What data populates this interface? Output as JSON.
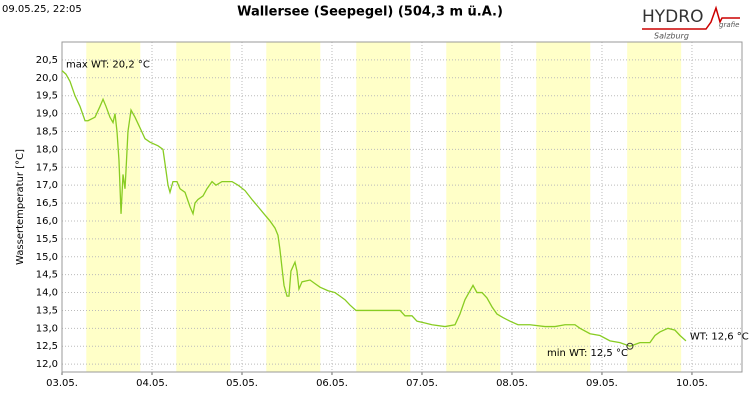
{
  "timestamp": "09.05.25, 22:05",
  "logo": {
    "name": "HYDRO",
    "suffix": "grafie",
    "region": "Salzburg"
  },
  "chart_data": {
    "type": "line",
    "title": "Wallersee (Seepegel) (504,3 m ü.A.)",
    "y_label": "Wassertemperatur [°C]",
    "xlim": [
      0,
      7.556
    ],
    "xticks": [
      {
        "value": 0,
        "label": "03.05."
      },
      {
        "value": 1,
        "label": "04.05."
      },
      {
        "value": 2,
        "label": "05.05."
      },
      {
        "value": 3,
        "label": "06.05."
      },
      {
        "value": 4,
        "label": "07.05."
      },
      {
        "value": 5,
        "label": "08.05."
      },
      {
        "value": 6,
        "label": "09.05."
      },
      {
        "value": 7,
        "label": "10.05."
      }
    ],
    "ylim": [
      11.78,
      21.0
    ],
    "yticks": [
      {
        "value": 12.0,
        "label": "12,0"
      },
      {
        "value": 12.5,
        "label": "12,5"
      },
      {
        "value": 13.0,
        "label": "13,0"
      },
      {
        "value": 13.5,
        "label": "13,5"
      },
      {
        "value": 14.0,
        "label": "14,0"
      },
      {
        "value": 14.5,
        "label": "14,5"
      },
      {
        "value": 15.0,
        "label": "15,0"
      },
      {
        "value": 15.5,
        "label": "15,5"
      },
      {
        "value": 16.0,
        "label": "16,0"
      },
      {
        "value": 16.5,
        "label": "16,5"
      },
      {
        "value": 17.0,
        "label": "17,0"
      },
      {
        "value": 17.5,
        "label": "17,5"
      },
      {
        "value": 18.0,
        "label": "18,0"
      },
      {
        "value": 18.5,
        "label": "18,5"
      },
      {
        "value": 19.0,
        "label": "19,0"
      },
      {
        "value": 19.5,
        "label": "19,5"
      },
      {
        "value": 20.0,
        "label": "20,0"
      },
      {
        "value": 20.5,
        "label": "20,5"
      }
    ],
    "grid": true,
    "day_bands": [
      [
        0.27,
        0.87
      ],
      [
        1.27,
        1.87
      ],
      [
        2.27,
        2.87
      ],
      [
        3.27,
        3.87
      ],
      [
        4.27,
        4.87
      ],
      [
        5.27,
        5.87
      ],
      [
        6.28,
        6.88
      ]
    ],
    "band_color": "#ffffc8",
    "series": [
      {
        "name": "WT",
        "color": "#88cc22",
        "x": [
          0,
          0.044,
          0.089,
          0.144,
          0.2,
          0.256,
          0.289,
          0.367,
          0.422,
          0.456,
          0.489,
          0.533,
          0.567,
          0.589,
          0.611,
          0.633,
          0.656,
          0.678,
          0.7,
          0.711,
          0.733,
          0.767,
          0.811,
          0.867,
          0.922,
          0.978,
          1.067,
          1.122,
          1.156,
          1.178,
          1.2,
          1.233,
          1.278,
          1.311,
          1.367,
          1.422,
          1.456,
          1.478,
          1.511,
          1.567,
          1.611,
          1.667,
          1.711,
          1.778,
          1.889,
          1.956,
          2.033,
          2.111,
          2.178,
          2.244,
          2.311,
          2.367,
          2.4,
          2.422,
          2.444,
          2.467,
          2.5,
          2.522,
          2.544,
          2.589,
          2.611,
          2.633,
          2.667,
          2.756,
          2.811,
          2.867,
          2.956,
          3.033,
          3.089,
          3.144,
          3.2,
          3.267,
          3.367,
          3.589,
          3.756,
          3.811,
          3.889,
          3.944,
          4.033,
          4.111,
          4.256,
          4.367,
          4.422,
          4.478,
          4.533,
          4.567,
          4.611,
          4.667,
          4.722,
          4.778,
          4.833,
          4.9,
          4.978,
          5.067,
          5.2,
          5.367,
          5.478,
          5.589,
          5.7,
          5.756,
          5.867,
          5.978,
          6.089,
          6.2,
          6.311,
          6.422,
          6.533,
          6.589,
          6.644,
          6.733,
          6.811,
          6.867,
          6.933
        ],
        "values": [
          20.2,
          20.1,
          19.9,
          19.5,
          19.2,
          18.8,
          18.8,
          18.9,
          19.2,
          19.4,
          19.2,
          18.9,
          18.75,
          19.0,
          18.5,
          17.7,
          16.2,
          17.3,
          16.9,
          17.4,
          18.5,
          19.1,
          18.9,
          18.6,
          18.3,
          18.2,
          18.1,
          18.0,
          17.4,
          17.0,
          16.8,
          17.1,
          17.1,
          16.9,
          16.8,
          16.4,
          16.2,
          16.5,
          16.6,
          16.7,
          16.9,
          17.1,
          17.0,
          17.1,
          17.1,
          17.0,
          16.85,
          16.6,
          16.4,
          16.2,
          16.0,
          15.8,
          15.6,
          15.2,
          14.7,
          14.2,
          13.9,
          13.9,
          14.6,
          14.85,
          14.6,
          14.1,
          14.3,
          14.35,
          14.25,
          14.15,
          14.05,
          14.0,
          13.9,
          13.8,
          13.65,
          13.5,
          13.5,
          13.5,
          13.5,
          13.35,
          13.35,
          13.2,
          13.15,
          13.1,
          13.05,
          13.1,
          13.4,
          13.8,
          14.05,
          14.2,
          14.0,
          14.0,
          13.85,
          13.6,
          13.4,
          13.3,
          13.2,
          13.1,
          13.1,
          13.05,
          13.05,
          13.1,
          13.1,
          13.0,
          12.85,
          12.8,
          12.65,
          12.6,
          12.5,
          12.6,
          12.6,
          12.8,
          12.9,
          13.0,
          12.95,
          12.8,
          12.65
        ]
      }
    ],
    "annotations": [
      {
        "text": "max WT: 20,2 °C",
        "x": 0,
        "y": 20.2,
        "placement": "right"
      },
      {
        "text": "min WT: 12,5 °C",
        "x": 6.311,
        "y": 12.5,
        "placement": "below-left",
        "marker": true
      },
      {
        "text": "WT: 12,6 °C",
        "x": 6.933,
        "y": 12.6,
        "placement": "right"
      }
    ]
  }
}
